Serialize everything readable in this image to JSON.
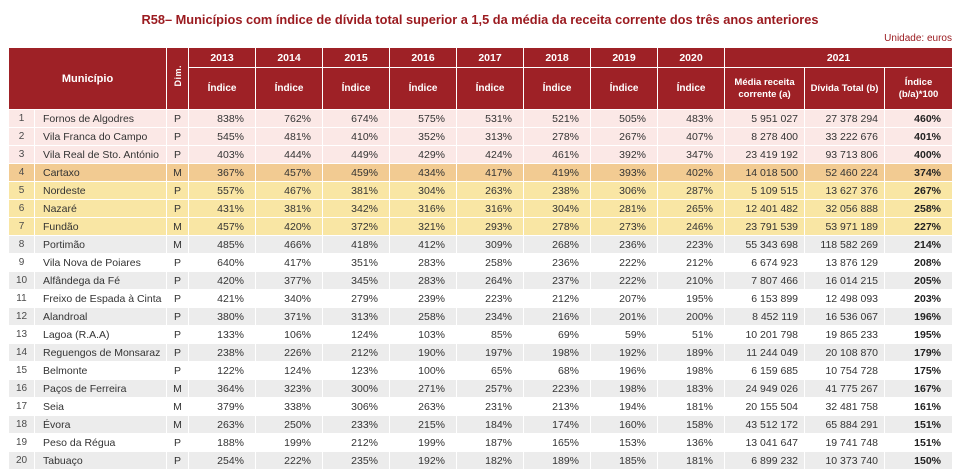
{
  "title": "R58– Municípios com índice de dívida total superior a 1,5 da média da receita corrente dos três anos anteriores",
  "unit_label": "Unidade: euros",
  "table": {
    "col_municipio": "Município",
    "col_dim": "Dim.",
    "years": [
      "2013",
      "2014",
      "2015",
      "2016",
      "2017",
      "2018",
      "2019",
      "2020"
    ],
    "indice_label": "Índice",
    "col_2021": "2021",
    "col_media": "Média receita corrente (a)",
    "col_divida": "Dívida Total (b)",
    "col_indice_ba": "Índice (b/a)*100",
    "accent_color": "#9e2126",
    "rows": [
      {
        "num": "1",
        "municipio": "Fornos de Algodres",
        "dim": "P",
        "values": [
          "838%",
          "762%",
          "674%",
          "575%",
          "531%",
          "521%",
          "505%",
          "483%"
        ],
        "media": "5 951 027",
        "divida": "27 378 294",
        "indice": "460%",
        "highlight": "pink"
      },
      {
        "num": "2",
        "municipio": "Vila Franca do Campo",
        "dim": "P",
        "values": [
          "545%",
          "481%",
          "410%",
          "352%",
          "313%",
          "278%",
          "267%",
          "407%"
        ],
        "media": "8 278 400",
        "divida": "33 222 676",
        "indice": "401%",
        "highlight": "pink"
      },
      {
        "num": "3",
        "municipio": "Vila Real de Sto. António",
        "dim": "P",
        "values": [
          "403%",
          "444%",
          "449%",
          "429%",
          "424%",
          "461%",
          "392%",
          "347%"
        ],
        "media": "23 419 192",
        "divida": "93 713 806",
        "indice": "400%",
        "highlight": "pink"
      },
      {
        "num": "4",
        "municipio": "Cartaxo",
        "dim": "M",
        "values": [
          "367%",
          "457%",
          "459%",
          "434%",
          "417%",
          "419%",
          "393%",
          "402%"
        ],
        "media": "14 018 500",
        "divida": "52 460 224",
        "indice": "374%",
        "highlight": "tan"
      },
      {
        "num": "5",
        "municipio": "Nordeste",
        "dim": "P",
        "values": [
          "557%",
          "467%",
          "381%",
          "304%",
          "263%",
          "238%",
          "306%",
          "287%"
        ],
        "media": "5 109 515",
        "divida": "13 627 376",
        "indice": "267%",
        "highlight": "yellow"
      },
      {
        "num": "6",
        "municipio": "Nazaré",
        "dim": "P",
        "values": [
          "431%",
          "381%",
          "342%",
          "316%",
          "316%",
          "304%",
          "281%",
          "265%"
        ],
        "media": "12 401 482",
        "divida": "32 056 888",
        "indice": "258%",
        "highlight": "yellow"
      },
      {
        "num": "7",
        "municipio": "Fundão",
        "dim": "M",
        "values": [
          "457%",
          "420%",
          "372%",
          "321%",
          "293%",
          "278%",
          "273%",
          "246%"
        ],
        "media": "23 791 539",
        "divida": "53 971 189",
        "indice": "227%",
        "highlight": "yellow"
      },
      {
        "num": "8",
        "municipio": "Portimão",
        "dim": "M",
        "values": [
          "485%",
          "466%",
          "418%",
          "412%",
          "309%",
          "268%",
          "236%",
          "223%"
        ],
        "media": "55 343 698",
        "divida": "118 582 269",
        "indice": "214%",
        "highlight": "grey"
      },
      {
        "num": "9",
        "municipio": "Vila Nova de Poiares",
        "dim": "P",
        "values": [
          "640%",
          "417%",
          "351%",
          "283%",
          "258%",
          "236%",
          "222%",
          "212%"
        ],
        "media": "6 674 923",
        "divida": "13 876 129",
        "indice": "208%",
        "highlight": "white"
      },
      {
        "num": "10",
        "municipio": "Alfândega da Fé",
        "dim": "P",
        "values": [
          "420%",
          "377%",
          "345%",
          "283%",
          "264%",
          "237%",
          "222%",
          "210%"
        ],
        "media": "7 807 466",
        "divida": "16 014 215",
        "indice": "205%",
        "highlight": "grey"
      },
      {
        "num": "11",
        "municipio": "Freixo de Espada à Cinta",
        "dim": "P",
        "values": [
          "421%",
          "340%",
          "279%",
          "239%",
          "223%",
          "212%",
          "207%",
          "195%"
        ],
        "media": "6 153 899",
        "divida": "12 498 093",
        "indice": "203%",
        "highlight": "white"
      },
      {
        "num": "12",
        "municipio": "Alandroal",
        "dim": "P",
        "values": [
          "380%",
          "371%",
          "313%",
          "258%",
          "234%",
          "216%",
          "201%",
          "200%"
        ],
        "media": "8 452 119",
        "divida": "16 536 067",
        "indice": "196%",
        "highlight": "grey"
      },
      {
        "num": "13",
        "municipio": "Lagoa (R.A.A)",
        "dim": "P",
        "values": [
          "133%",
          "106%",
          "124%",
          "103%",
          "85%",
          "69%",
          "59%",
          "51%"
        ],
        "media": "10 201 798",
        "divida": "19 865 233",
        "indice": "195%",
        "highlight": "white"
      },
      {
        "num": "14",
        "municipio": "Reguengos de Monsaraz",
        "dim": "P",
        "values": [
          "238%",
          "226%",
          "212%",
          "190%",
          "197%",
          "198%",
          "192%",
          "189%"
        ],
        "media": "11 244 049",
        "divida": "20 108 870",
        "indice": "179%",
        "highlight": "grey"
      },
      {
        "num": "15",
        "municipio": "Belmonte",
        "dim": "P",
        "values": [
          "122%",
          "124%",
          "123%",
          "100%",
          "65%",
          "68%",
          "196%",
          "198%"
        ],
        "media": "6 159 685",
        "divida": "10 754 728",
        "indice": "175%",
        "highlight": "white"
      },
      {
        "num": "16",
        "municipio": "Paços de Ferreira",
        "dim": "M",
        "values": [
          "364%",
          "323%",
          "300%",
          "271%",
          "257%",
          "223%",
          "198%",
          "183%"
        ],
        "media": "24 949 026",
        "divida": "41 775 267",
        "indice": "167%",
        "highlight": "grey"
      },
      {
        "num": "17",
        "municipio": "Seia",
        "dim": "M",
        "values": [
          "379%",
          "338%",
          "306%",
          "263%",
          "231%",
          "213%",
          "194%",
          "181%"
        ],
        "media": "20 155 504",
        "divida": "32 481 758",
        "indice": "161%",
        "highlight": "white"
      },
      {
        "num": "18",
        "municipio": "Évora",
        "dim": "M",
        "values": [
          "263%",
          "250%",
          "233%",
          "215%",
          "184%",
          "174%",
          "160%",
          "158%"
        ],
        "media": "43 512 172",
        "divida": "65 884 291",
        "indice": "151%",
        "highlight": "grey"
      },
      {
        "num": "19",
        "municipio": "Peso da Régua",
        "dim": "P",
        "values": [
          "188%",
          "199%",
          "212%",
          "199%",
          "187%",
          "165%",
          "153%",
          "136%"
        ],
        "media": "13 041 647",
        "divida": "19 741 748",
        "indice": "151%",
        "highlight": "white"
      },
      {
        "num": "20",
        "municipio": "Tabuaço",
        "dim": "P",
        "values": [
          "254%",
          "222%",
          "235%",
          "192%",
          "182%",
          "189%",
          "185%",
          "181%"
        ],
        "media": "6 899 232",
        "divida": "10 373 740",
        "indice": "150%",
        "highlight": "grey"
      }
    ]
  }
}
